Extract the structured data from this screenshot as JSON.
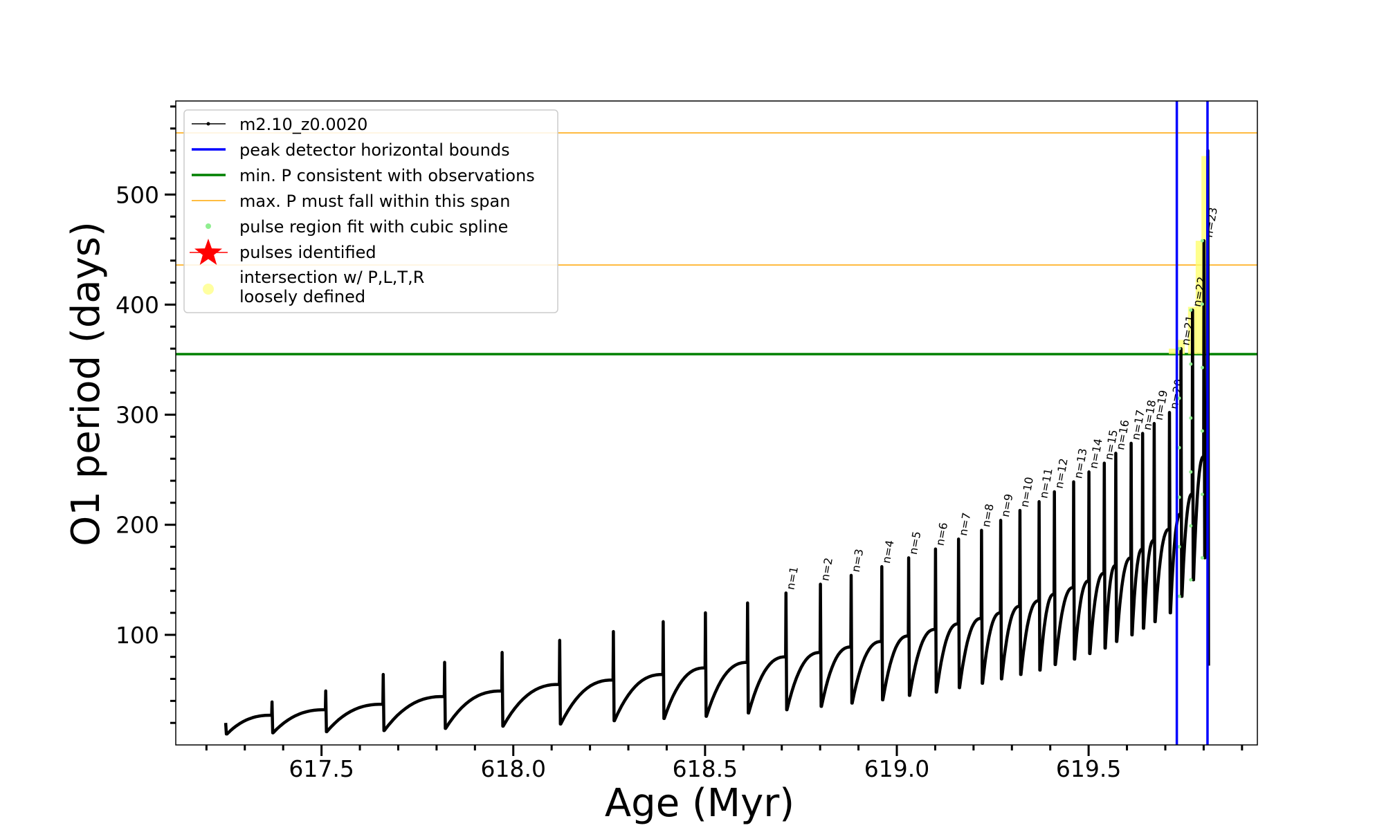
{
  "chart_data": {
    "type": "line",
    "title": "",
    "xlabel": "Age (Myr)",
    "ylabel": "O1 period (days)",
    "xlim": [
      617.12,
      619.94
    ],
    "ylim": [
      0,
      585
    ],
    "x_ticks": [
      617.5,
      618.0,
      618.5,
      619.0,
      619.5
    ],
    "x_tick_labels": [
      "617.5",
      "618.0",
      "618.5",
      "619.0",
      "619.5"
    ],
    "y_ticks": [
      100,
      200,
      300,
      400,
      500
    ],
    "y_tick_labels": [
      "100",
      "200",
      "300",
      "400",
      "500"
    ],
    "grid": false,
    "legend_placement": "upper-left",
    "legend": [
      {
        "label": "m2.10_z0.0020",
        "style": "line-marker",
        "color": "#000000"
      },
      {
        "label": "peak detector horizontal bounds",
        "style": "line",
        "color": "#0000ff"
      },
      {
        "label": "min. P consistent with observations",
        "style": "line",
        "color": "#008000"
      },
      {
        "label": "max. P must fall within this span",
        "style": "thin-line",
        "color": "#ffa500"
      },
      {
        "label": "pulse region fit with cubic spline",
        "style": "dot",
        "color": "#90ee90"
      },
      {
        "label": "pulses identified",
        "style": "star",
        "color": "#ff0000"
      },
      {
        "label": "intersection w/ P,L,T,R",
        "label2": "loosely defined",
        "style": "big-dot",
        "color": "#ffffa0"
      }
    ],
    "reference_lines": {
      "horizontal": [
        {
          "name": "min. P consistent with observations",
          "y": 355,
          "color": "#008000"
        },
        {
          "name": "max. P must fall within this span",
          "y": 436,
          "color": "#ffa500"
        },
        {
          "name": "max. P must fall within this span",
          "y": 556,
          "color": "#ffa500"
        }
      ],
      "vertical": [
        {
          "name": "peak detector horizontal bounds",
          "x": 619.73,
          "color": "#0000ff"
        },
        {
          "name": "peak detector horizontal bounds",
          "x": 619.81,
          "color": "#0000ff"
        }
      ]
    },
    "series": [
      {
        "name": "m2.10_z0.0020",
        "color": "#000000",
        "pulses": [
          {
            "x": 617.25,
            "base": 10,
            "pre": 12,
            "peak": 20,
            "label": ""
          },
          {
            "x": 617.37,
            "base": 11,
            "pre": 27,
            "peak": 39,
            "label": ""
          },
          {
            "x": 617.51,
            "base": 12,
            "pre": 32,
            "peak": 49,
            "label": ""
          },
          {
            "x": 617.66,
            "base": 13,
            "pre": 37,
            "peak": 64,
            "label": ""
          },
          {
            "x": 617.82,
            "base": 15,
            "pre": 44,
            "peak": 75,
            "label": ""
          },
          {
            "x": 617.97,
            "base": 17,
            "pre": 49,
            "peak": 84,
            "label": ""
          },
          {
            "x": 618.12,
            "base": 19,
            "pre": 55,
            "peak": 95,
            "label": ""
          },
          {
            "x": 618.26,
            "base": 22,
            "pre": 59,
            "peak": 103,
            "label": ""
          },
          {
            "x": 618.39,
            "base": 24,
            "pre": 64,
            "peak": 112,
            "label": ""
          },
          {
            "x": 618.5,
            "base": 26,
            "pre": 70,
            "peak": 120,
            "label": ""
          },
          {
            "x": 618.61,
            "base": 29,
            "pre": 75,
            "peak": 129,
            "label": ""
          },
          {
            "x": 618.71,
            "base": 32,
            "pre": 80,
            "peak": 138,
            "label": "n=1"
          },
          {
            "x": 618.8,
            "base": 35,
            "pre": 84,
            "peak": 146,
            "label": "n=2"
          },
          {
            "x": 618.88,
            "base": 38,
            "pre": 89,
            "peak": 154,
            "label": "n=3"
          },
          {
            "x": 618.96,
            "base": 41,
            "pre": 94,
            "peak": 162,
            "label": "n=4"
          },
          {
            "x": 619.03,
            "base": 45,
            "pre": 99,
            "peak": 170,
            "label": "n=5"
          },
          {
            "x": 619.1,
            "base": 48,
            "pre": 105,
            "peak": 178,
            "label": "n=6"
          },
          {
            "x": 619.16,
            "base": 52,
            "pre": 110,
            "peak": 187,
            "label": "n=7"
          },
          {
            "x": 619.22,
            "base": 56,
            "pre": 115,
            "peak": 195,
            "label": "n=8"
          },
          {
            "x": 619.27,
            "base": 60,
            "pre": 120,
            "peak": 204,
            "label": "n=9"
          },
          {
            "x": 619.32,
            "base": 64,
            "pre": 126,
            "peak": 213,
            "label": "n=10"
          },
          {
            "x": 619.37,
            "base": 68,
            "pre": 131,
            "peak": 221,
            "label": "n=11"
          },
          {
            "x": 619.41,
            "base": 73,
            "pre": 137,
            "peak": 230,
            "label": "n=12"
          },
          {
            "x": 619.46,
            "base": 78,
            "pre": 143,
            "peak": 239,
            "label": "n=13"
          },
          {
            "x": 619.5,
            "base": 83,
            "pre": 149,
            "peak": 248,
            "label": "n=14"
          },
          {
            "x": 619.54,
            "base": 88,
            "pre": 156,
            "peak": 256,
            "label": "n=15"
          },
          {
            "x": 619.57,
            "base": 94,
            "pre": 163,
            "peak": 265,
            "label": "n=16"
          },
          {
            "x": 619.61,
            "base": 100,
            "pre": 170,
            "peak": 274,
            "label": "n=17"
          },
          {
            "x": 619.64,
            "base": 106,
            "pre": 178,
            "peak": 283,
            "label": "n=18"
          },
          {
            "x": 619.67,
            "base": 112,
            "pre": 186,
            "peak": 292,
            "label": "n=19"
          },
          {
            "x": 619.71,
            "base": 120,
            "pre": 196,
            "peak": 302,
            "label": "n=20"
          },
          {
            "x": 619.74,
            "base": 135,
            "pre": 210,
            "peak": 360,
            "label": "n=21"
          },
          {
            "x": 619.77,
            "base": 150,
            "pre": 228,
            "peak": 395,
            "label": "n=22"
          },
          {
            "x": 619.8,
            "base": 170,
            "pre": 262,
            "peak": 458,
            "label": "n=23"
          },
          {
            "x": 619.81,
            "base": 72,
            "pre": 305,
            "peak": 540,
            "label": ""
          }
        ]
      },
      {
        "name": "intersection w/ P,L,T,R loosely defined",
        "color": "#ffff66",
        "bands": [
          {
            "x": 619.72,
            "y0": 355,
            "y1": 360
          },
          {
            "x": 619.74,
            "y0": 355,
            "y1": 368
          },
          {
            "x": 619.77,
            "y0": 355,
            "y1": 398
          },
          {
            "x": 619.79,
            "y0": 355,
            "y1": 458
          },
          {
            "x": 619.805,
            "y0": 355,
            "y1": 535
          }
        ]
      }
    ]
  }
}
